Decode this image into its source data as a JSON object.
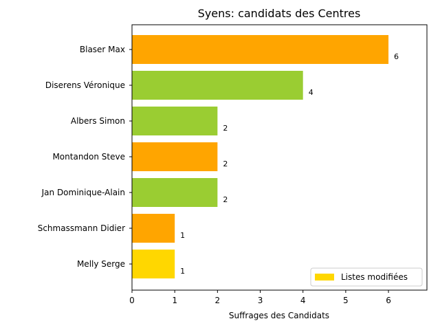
{
  "chart_data": {
    "type": "bar",
    "orientation": "horizontal",
    "title": "Syens: candidats des Centres",
    "xlabel": "Suffrages des Candidats",
    "ylabel": "",
    "xlim": [
      0,
      6.9
    ],
    "xticks": [
      0,
      1,
      2,
      3,
      4,
      5,
      6
    ],
    "grid": false,
    "legend_position": "bottom-right",
    "categories": [
      "Blaser Max",
      "Diserens Véronique",
      "Albers Simon",
      "Montandon Steve",
      "Jan Dominique-Alain",
      "Schmassmann Didier",
      "Melly Serge"
    ],
    "values": [
      6,
      4,
      2,
      2,
      2,
      1,
      1
    ],
    "bar_colors": [
      "#FFA500",
      "#9ACD32",
      "#9ACD32",
      "#FFA500",
      "#9ACD32",
      "#FFA500",
      "#FFD700"
    ],
    "legend": [
      {
        "label": "Listes modifiées",
        "color": "#FFD700"
      }
    ]
  }
}
